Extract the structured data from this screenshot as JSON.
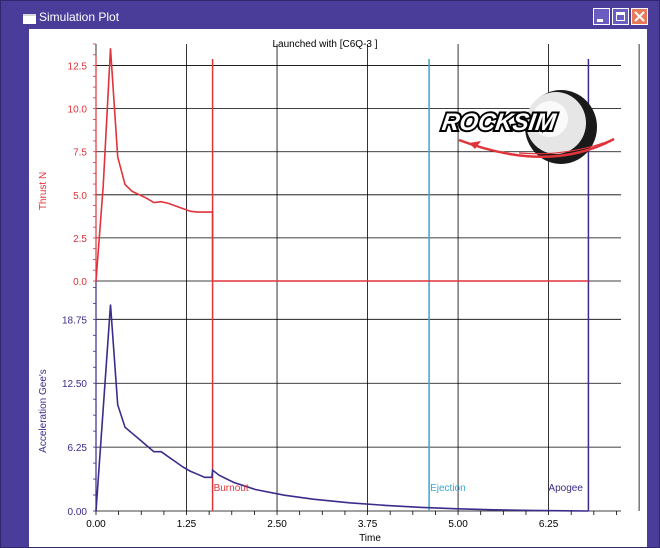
{
  "window": {
    "title": "Simulation Plot",
    "icons": [
      "window-icon",
      "minimize-icon",
      "maximize-icon",
      "close-icon"
    ]
  },
  "chart": {
    "header": "Launched with [C6Q-3    ]",
    "logo_text": "ROCKSIM",
    "x_axis_label": "Time",
    "x_ticks": [
      "0.00",
      "1.25",
      "2.50",
      "3.75",
      "5.00",
      "6.25"
    ],
    "thrust_axis_label": "Thrust  N",
    "thrust_ticks": [
      "12.5",
      "10.0",
      "7.5",
      "5.0",
      "2.5",
      "0.0"
    ],
    "accel_axis_label": "Acceleration  Gee's",
    "accel_ticks": [
      "18.75",
      "12.50",
      "6.25",
      "0.00"
    ],
    "events": [
      {
        "label": "Burnout",
        "time": 1.61,
        "color": "#e0333a"
      },
      {
        "label": "Ejection",
        "time": 4.6,
        "color": "#3aa6d0"
      },
      {
        "label": "Apogee",
        "time": 6.8,
        "color": "#3b2c8c"
      }
    ]
  },
  "colors": {
    "frame": "#4a3d9a",
    "thrust": "#e0333a",
    "accel": "#3b2c8c",
    "ejection": "#3aa6d0"
  },
  "chart_data": [
    {
      "type": "line",
      "title": "Launched with [C6Q-3    ]",
      "xlabel": "Time",
      "ylabel": "Thrust  N",
      "xlim": [
        0,
        7.25
      ],
      "ylim": [
        0,
        13.75
      ],
      "grid": true,
      "series": [
        {
          "x": [
            0,
            0.1,
            0.2,
            0.3,
            0.4,
            0.5,
            0.6,
            0.7,
            0.8,
            0.9,
            1.0,
            1.1,
            1.2,
            1.3,
            1.4,
            1.5,
            1.61,
            1.61,
            6.8
          ],
          "values": [
            0,
            5.5,
            13.5,
            7.2,
            5.6,
            5.2,
            5.0,
            4.8,
            4.55,
            4.6,
            4.5,
            4.35,
            4.2,
            4.05,
            4.0,
            4.0,
            4.0,
            0.0,
            0.0
          ]
        }
      ]
    },
    {
      "type": "line",
      "xlabel": "Time",
      "ylabel": "Acceleration  Gee's",
      "xlim": [
        0,
        7.25
      ],
      "ylim": [
        0,
        22.5
      ],
      "grid": true,
      "series": [
        {
          "x": [
            0,
            0.1,
            0.2,
            0.3,
            0.4,
            0.5,
            0.6,
            0.7,
            0.8,
            0.9,
            1.0,
            1.1,
            1.2,
            1.3,
            1.4,
            1.5,
            1.6,
            1.61,
            1.7,
            1.9,
            2.2,
            2.6,
            3.0,
            3.5,
            4.0,
            4.5,
            5.0,
            5.5,
            6.0,
            6.5,
            6.8
          ],
          "values": [
            0,
            10,
            20.2,
            10.4,
            8.2,
            7.6,
            7.0,
            6.4,
            5.8,
            5.8,
            5.3,
            4.8,
            4.3,
            3.9,
            3.6,
            3.3,
            3.3,
            4.0,
            3.5,
            2.8,
            2.1,
            1.55,
            1.15,
            0.8,
            0.55,
            0.35,
            0.22,
            0.12,
            0.06,
            0.02,
            0.0
          ]
        }
      ]
    }
  ]
}
